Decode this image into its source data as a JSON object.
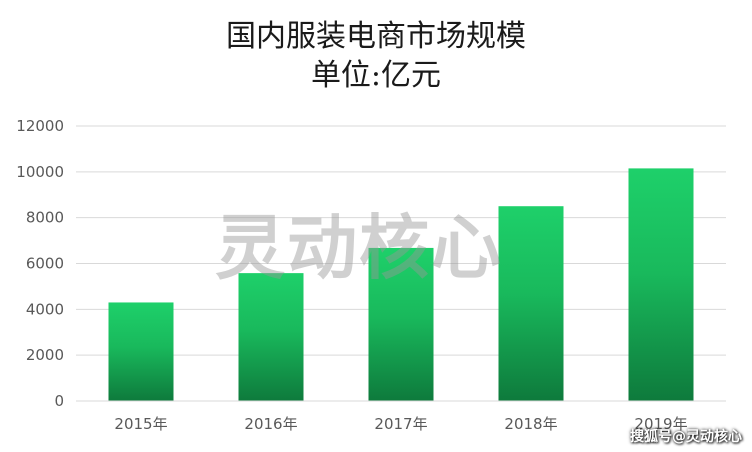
{
  "chart_data": {
    "type": "bar",
    "title": "国内服装电商市场规模",
    "subtitle": "单位:亿元",
    "categories": [
      "2015年",
      "2016年",
      "2017年",
      "2018年",
      "2019年"
    ],
    "values": [
      4300,
      5580,
      6680,
      8500,
      10150
    ],
    "ylim": [
      0,
      12000
    ],
    "yticks": [
      0,
      2000,
      4000,
      6000,
      8000,
      10000,
      12000
    ],
    "grid": true,
    "legend": "none",
    "bar_color_top": "#1ed06a",
    "bar_color_bottom": "#0e7a3c"
  },
  "watermark": "灵动核心",
  "credit": "搜狐号@灵动核心"
}
